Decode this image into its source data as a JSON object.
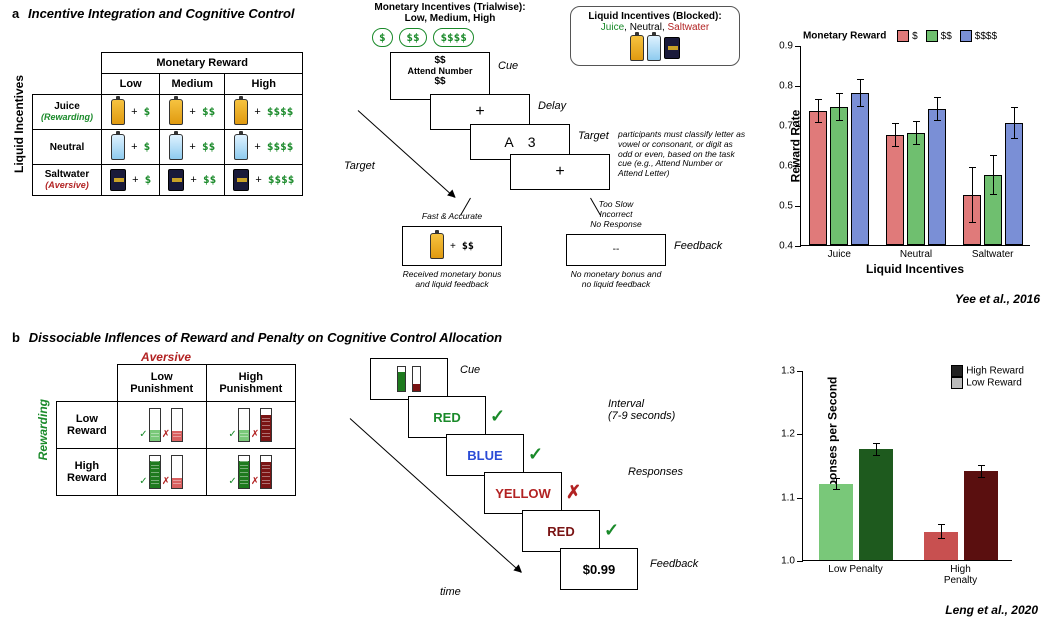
{
  "panelA": {
    "label": "a",
    "title": "Incentive Integration and Cognitive Control",
    "table": {
      "col_header": "Monetary Reward",
      "cols": [
        "Low",
        "Medium",
        "High"
      ],
      "row_header": "Liquid Incentives",
      "rows": [
        {
          "name": "Juice",
          "tag": "(Rewarding)",
          "icon": "juice",
          "money": [
            "$",
            "$$",
            "$$$$"
          ]
        },
        {
          "name": "Neutral",
          "tag": "",
          "icon": "water",
          "money": [
            "$",
            "$$",
            "$$$$"
          ]
        },
        {
          "name": "Saltwater",
          "tag": "(Aversive)",
          "icon": "can",
          "money": [
            "$",
            "$$",
            "$$$$"
          ]
        }
      ]
    },
    "trial": {
      "monetary_header": "Monetary Incentives (Trialwise):",
      "monetary_levels": "Low, Medium, High",
      "pills": [
        "$",
        "$$",
        "$$$$"
      ],
      "liquid_header": "Liquid Incentives (Blocked):",
      "liquid_levels_html": [
        "Juice",
        "Neutral",
        "Saltwater"
      ],
      "cue_top": "$$",
      "cue_mid": "Attend Number",
      "cue_bot": "$$",
      "labels": {
        "cue": "Cue",
        "delay": "Delay",
        "target": "Target",
        "feedback": "Feedback",
        "trial_target": "Target"
      },
      "target_letter": "A",
      "target_digit": "3",
      "instr": "participants must classify letter as vowel or consonant, or digit as odd or even, based on the task cue (e.g., Attend Number or Attend Letter)",
      "good_hdr": "Fast & Accurate",
      "good_txt": "Received monetary bonus and liquid feedback",
      "good_money": "$$",
      "bad_hdr": "Too Slow\nIncorrect\nNo Response",
      "bad_symbol": "--",
      "bad_txt": "No monetary bonus and no liquid feedback"
    },
    "chart": {
      "legend_title": "Monetary Reward",
      "legend": [
        {
          "label": "$",
          "color": "#e07a7a"
        },
        {
          "label": "$$",
          "color": "#6fbf6f"
        },
        {
          "label": "$$$$",
          "color": "#7a8fd6"
        }
      ],
      "ylabel": "Reward Rate",
      "xlabel": "Liquid Incentives",
      "ylim": [
        0.4,
        0.9
      ],
      "yticks": [
        0.4,
        0.5,
        0.6,
        0.7,
        0.8,
        0.9
      ],
      "groups": [
        "Juice",
        "Neutral",
        "Saltwater"
      ],
      "values": [
        [
          0.735,
          0.745,
          0.78
        ],
        [
          0.675,
          0.68,
          0.74
        ],
        [
          0.525,
          0.575,
          0.705
        ]
      ],
      "errors": [
        [
          0.03,
          0.035,
          0.035
        ],
        [
          0.03,
          0.03,
          0.03
        ],
        [
          0.07,
          0.05,
          0.04
        ]
      ],
      "citation": "Yee et al., 2016"
    }
  },
  "panelB": {
    "label": "b",
    "title": "Dissociable Inflences of Reward and Penalty on Cognitive Control Allocation",
    "table": {
      "col_header": "Aversive",
      "cols": [
        "Low Punishment",
        "High Punishment"
      ],
      "row_header": "Rewarding",
      "rows": [
        "Low Reward",
        "High Reward"
      ],
      "gauges": {
        "low_reward_fill": 0.35,
        "high_reward_fill": 0.85,
        "low_pun_fill": 0.3,
        "high_pun_fill": 0.8,
        "green_light": "#79c879",
        "green_dark": "#1e7a1e",
        "red_light": "#d96060",
        "red_dark": "#7a1414"
      }
    },
    "stroop": {
      "labels": {
        "cue": "Cue",
        "interval": "Interval",
        "interval_sub": "(7-9 seconds)",
        "responses": "Responses",
        "feedback": "Feedback",
        "time": "time"
      },
      "words": [
        {
          "text": "RED",
          "color": "#1a8a2a",
          "mark": "ok"
        },
        {
          "text": "BLUE",
          "color": "#2a4bd6",
          "mark": "ok"
        },
        {
          "text": "YELLOW",
          "color": "#b22222",
          "mark": "bad"
        },
        {
          "text": "RED",
          "color": "#7a1414",
          "mark": "ok"
        }
      ],
      "feedback": "$0.99"
    },
    "chart": {
      "legend": [
        {
          "label": "High Reward",
          "swatch_note": "dark"
        },
        {
          "label": "Low Reward",
          "swatch_note": "light"
        }
      ],
      "ylabel": "Correct Responses per Second",
      "ylim": [
        1.0,
        1.3
      ],
      "yticks": [
        1.0,
        1.1,
        1.2,
        1.3
      ],
      "groups": [
        "Low Penalty",
        "High Penalty"
      ],
      "colors": {
        "lp_low": "#79c879",
        "lp_high": "#1e5a1e",
        "hp_low": "#c85050",
        "hp_high": "#5a0f0f"
      },
      "values": {
        "lp_low": 1.12,
        "lp_high": 1.175,
        "hp_low": 1.045,
        "hp_high": 1.14
      },
      "errors": {
        "lp_low": 0.01,
        "lp_high": 0.01,
        "hp_low": 0.012,
        "hp_high": 0.01
      },
      "citation": "Leng et al., 2020"
    }
  }
}
